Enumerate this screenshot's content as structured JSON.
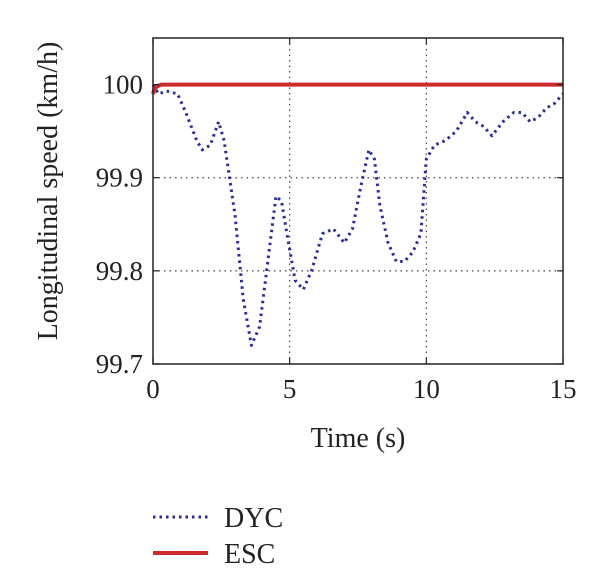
{
  "chart_data": {
    "type": "line",
    "title": "",
    "xlabel": "Time (s)",
    "ylabel": "Longitudinal speed (km/h)",
    "xlim": [
      0,
      15
    ],
    "ylim": [
      99.7,
      100.05
    ],
    "xticks": [
      0,
      5,
      10,
      15
    ],
    "xtick_labels": [
      "0",
      "5",
      "10",
      "15"
    ],
    "yticks": [
      99.7,
      99.8,
      99.9,
      100
    ],
    "ytick_labels": [
      "99.7",
      "99.8",
      "99.9",
      "100"
    ],
    "grid": true,
    "legend_position": "below",
    "series": [
      {
        "name": "DYC",
        "color": "#2b2b9c",
        "style": "dotted",
        "x": [
          0,
          0.2,
          0.5,
          0.9,
          1.2,
          1.6,
          1.8,
          2.1,
          2.4,
          2.6,
          3.0,
          3.3,
          3.6,
          3.9,
          4.2,
          4.5,
          4.7,
          4.9,
          5.2,
          5.5,
          5.8,
          6.2,
          6.6,
          7.0,
          7.3,
          7.6,
          7.9,
          8.1,
          8.3,
          8.6,
          8.9,
          9.2,
          9.5,
          9.8,
          10.0,
          10.3,
          10.7,
          11.1,
          11.5,
          11.8,
          12.1,
          12.4,
          12.8,
          13.2,
          13.5,
          13.8,
          14.1,
          14.4,
          14.7,
          15.0
        ],
        "y": [
          100.0,
          99.99,
          99.993,
          99.99,
          99.97,
          99.94,
          99.93,
          99.935,
          99.96,
          99.94,
          99.86,
          99.77,
          99.72,
          99.74,
          99.81,
          99.88,
          99.875,
          99.84,
          99.79,
          99.78,
          99.8,
          99.84,
          99.845,
          99.83,
          99.845,
          99.89,
          99.93,
          99.92,
          99.87,
          99.83,
          99.81,
          99.81,
          99.82,
          99.84,
          99.92,
          99.935,
          99.94,
          99.95,
          99.97,
          99.96,
          99.955,
          99.945,
          99.96,
          99.97,
          99.97,
          99.96,
          99.965,
          99.975,
          99.98,
          99.99
        ]
      },
      {
        "name": "ESC",
        "color": "#cc2b2b",
        "style": "solid",
        "x": [
          0,
          0.05,
          0.15,
          0.3,
          0.6,
          1,
          3,
          6,
          9,
          12,
          15
        ],
        "y": [
          99.99,
          99.995,
          99.998,
          100.0,
          100.0,
          100.0,
          100.0,
          100.0,
          100.0,
          100.0,
          100.0
        ]
      }
    ]
  }
}
